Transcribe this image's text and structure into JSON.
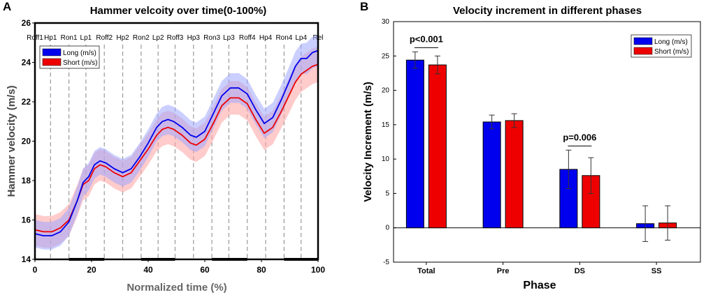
{
  "colors": {
    "long": "#0000ee",
    "short": "#ee0000",
    "long_band": "#9fa7ff",
    "short_band": "#ffa0a0",
    "dash": "#9a9a9a"
  },
  "chart_data": [
    {
      "panel": "A",
      "type": "line",
      "title": "Hammer velcoity over time(0-100%)",
      "xlabel": "Normalized time (%)",
      "ylabel": "Hammer velocity (m/s)",
      "xlim": [
        0,
        100
      ],
      "ylim": [
        14,
        26
      ],
      "xticks": [
        0,
        20,
        40,
        60,
        80,
        100
      ],
      "yticks": [
        14,
        16,
        18,
        20,
        22,
        24,
        26
      ],
      "grid": false,
      "legend_position": "top-left",
      "events": [
        {
          "label": "Roff1",
          "x": 0
        },
        {
          "label": "Hp1",
          "x": 5.5
        },
        {
          "label": "Ron1",
          "x": 12
        },
        {
          "label": "Lp1",
          "x": 18
        },
        {
          "label": "Roff2",
          "x": 24.5
        },
        {
          "label": "Hp2",
          "x": 31
        },
        {
          "label": "Ron2",
          "x": 37.5
        },
        {
          "label": "Lp2",
          "x": 43.5
        },
        {
          "label": "Roff3",
          "x": 49.5
        },
        {
          "label": "Hp3",
          "x": 56
        },
        {
          "label": "Ron3",
          "x": 62.5
        },
        {
          "label": "Lp3",
          "x": 68.5
        },
        {
          "label": "Roff4",
          "x": 75
        },
        {
          "label": "Hp4",
          "x": 81.5
        },
        {
          "label": "Ron4",
          "x": 88
        },
        {
          "label": "Lp4",
          "x": 94
        },
        {
          "label": "Rel",
          "x": 100
        }
      ],
      "support_phases": [
        [
          12,
          24.5
        ],
        [
          37.5,
          49.5
        ],
        [
          62.5,
          75
        ],
        [
          88,
          100
        ]
      ],
      "series": [
        {
          "name": "Long (m/s)",
          "x": [
            0,
            3,
            6,
            9,
            12,
            15,
            17,
            19,
            21,
            23,
            25,
            28,
            31,
            34,
            37,
            40,
            43,
            45,
            47,
            49,
            52,
            55,
            57,
            60,
            63,
            66,
            69,
            72,
            75,
            78,
            81,
            84,
            87,
            90,
            92,
            94,
            96,
            98,
            100
          ],
          "y": [
            15.3,
            15.2,
            15.2,
            15.4,
            15.9,
            17.0,
            17.9,
            18.2,
            18.8,
            19.0,
            18.9,
            18.6,
            18.4,
            18.6,
            19.2,
            19.9,
            20.7,
            21.0,
            21.1,
            21.0,
            20.7,
            20.3,
            20.2,
            20.5,
            21.4,
            22.3,
            22.7,
            22.7,
            22.4,
            21.6,
            20.9,
            21.2,
            22.1,
            23.1,
            23.8,
            24.2,
            24.2,
            24.5,
            24.6
          ],
          "band_half_width": [
            0.7,
            0.7,
            0.7,
            0.7,
            0.7,
            0.7,
            0.7,
            0.7,
            0.7,
            0.7,
            0.7,
            0.7,
            0.7,
            0.7,
            0.7,
            0.7,
            0.7,
            0.75,
            0.75,
            0.75,
            0.75,
            0.75,
            0.75,
            0.75,
            0.75,
            0.75,
            0.75,
            0.75,
            0.75,
            0.75,
            0.75,
            0.75,
            0.75,
            0.75,
            0.75,
            0.75,
            0.8,
            0.8,
            0.8
          ]
        },
        {
          "name": "Short (m/s)",
          "x": [
            0,
            3,
            6,
            9,
            12,
            15,
            17,
            19,
            21,
            23,
            25,
            28,
            31,
            34,
            37,
            40,
            43,
            45,
            47,
            49,
            52,
            55,
            57,
            60,
            63,
            66,
            69,
            72,
            75,
            78,
            81,
            84,
            87,
            90,
            92,
            94,
            96,
            98,
            100
          ],
          "y": [
            15.5,
            15.4,
            15.4,
            15.6,
            16.0,
            17.0,
            17.8,
            18.0,
            18.6,
            18.8,
            18.7,
            18.4,
            18.2,
            18.4,
            19.0,
            19.6,
            20.3,
            20.6,
            20.7,
            20.6,
            20.3,
            19.9,
            19.8,
            20.1,
            20.9,
            21.8,
            22.2,
            22.2,
            21.9,
            21.1,
            20.4,
            20.7,
            21.5,
            22.4,
            23.0,
            23.4,
            23.6,
            23.8,
            23.9
          ],
          "band_half_width": [
            0.8,
            0.8,
            0.8,
            0.8,
            0.8,
            0.8,
            0.8,
            0.8,
            0.8,
            0.8,
            0.8,
            0.8,
            0.8,
            0.8,
            0.8,
            0.8,
            0.8,
            0.85,
            0.85,
            0.85,
            0.85,
            0.85,
            0.85,
            0.85,
            0.85,
            0.85,
            0.85,
            0.85,
            0.85,
            0.85,
            0.85,
            0.85,
            0.85,
            0.9,
            0.9,
            0.9,
            0.9,
            0.9,
            0.9
          ]
        }
      ]
    },
    {
      "panel": "B",
      "type": "bar",
      "title": "Velocity increment in different phases",
      "xlabel": "Phase",
      "ylabel": "Velocity Increment  (m/s)",
      "ylim": [
        -5,
        30
      ],
      "yticks": [
        -5,
        0,
        5,
        10,
        15,
        20,
        25,
        30
      ],
      "grid": false,
      "legend_position": "top-right",
      "categories": [
        "Total",
        "Pre",
        "DS",
        "SS"
      ],
      "series": [
        {
          "name": "Long (m/s)",
          "values": [
            24.4,
            15.4,
            8.5,
            0.6
          ],
          "errors": [
            1.2,
            1.0,
            2.8,
            2.6
          ]
        },
        {
          "name": "Short (m/s)",
          "values": [
            23.7,
            15.6,
            7.6,
            0.7
          ],
          "errors": [
            1.3,
            1.0,
            2.6,
            2.5
          ]
        }
      ],
      "annotations": [
        {
          "text": "p<0.001",
          "category": "Total"
        },
        {
          "text": "p=0.006",
          "category": "DS"
        }
      ]
    }
  ]
}
